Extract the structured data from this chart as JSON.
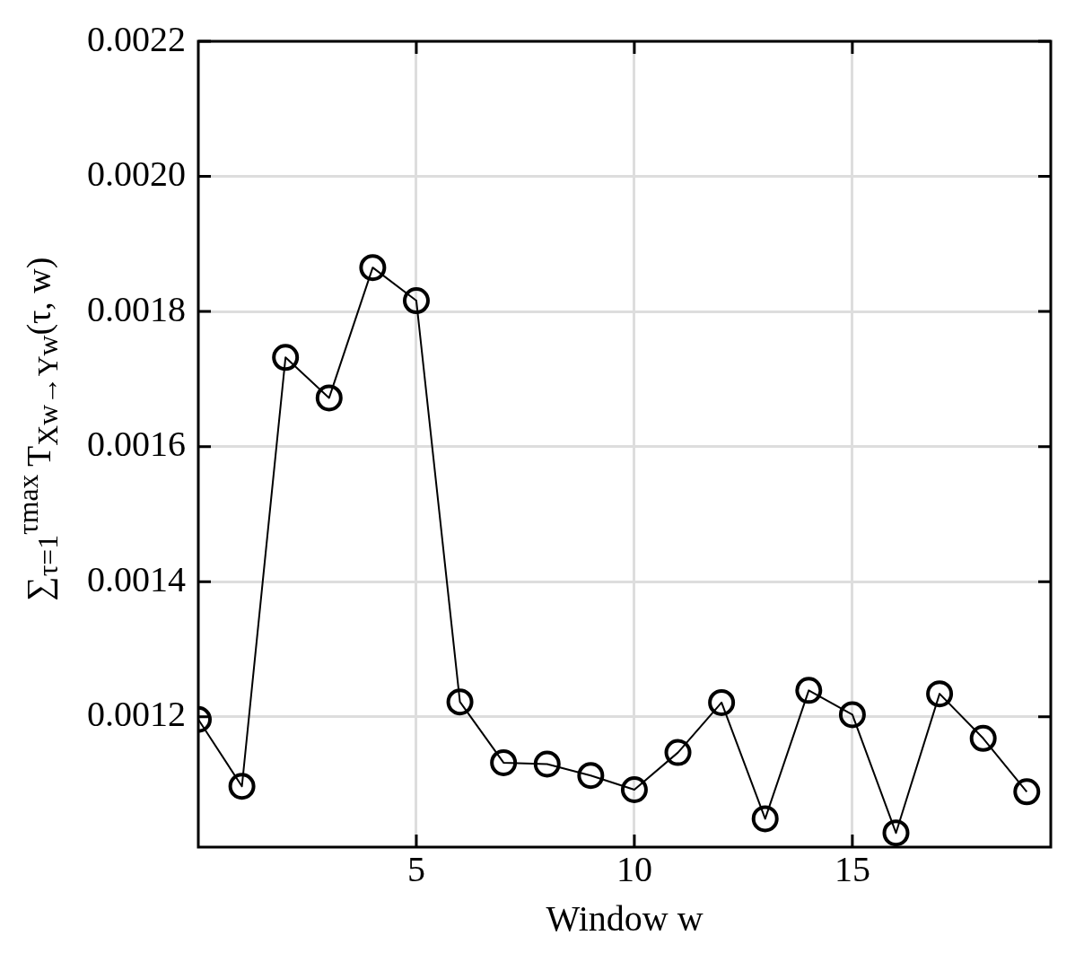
{
  "chart_data": {
    "type": "line",
    "xlabel": "Window w",
    "ylabel": "∑$_{τ=1}$$^{τmax}$ T$_{Xw→Yw}$(τ, w)",
    "x": [
      0,
      1,
      2,
      3,
      4,
      5,
      6,
      7,
      8,
      9,
      10,
      11,
      12,
      13,
      14,
      15,
      16,
      17,
      18,
      19
    ],
    "series": [
      {
        "color": "#000000",
        "values": [
          0.001196,
          0.001097,
          0.001732,
          0.001672,
          0.001865,
          0.001816,
          0.001222,
          0.001132,
          0.00113,
          0.001113,
          0.001092,
          0.001147,
          0.001221,
          0.001049,
          0.001239,
          0.001203,
          0.001028,
          0.001234,
          0.001168,
          0.001089
        ]
      }
    ],
    "xlim": [
      0,
      19.55
    ],
    "xticks": [
      5,
      10,
      15
    ],
    "ylim": [
      0.001007,
      0.0022
    ],
    "yticks": [
      0.0012,
      0.0014,
      0.0016,
      0.0018,
      {
        "value": 0.002,
        "label": "0.0020"
      },
      0.0022
    ],
    "grid": true,
    "marker": "circle",
    "line_style": "solid"
  }
}
